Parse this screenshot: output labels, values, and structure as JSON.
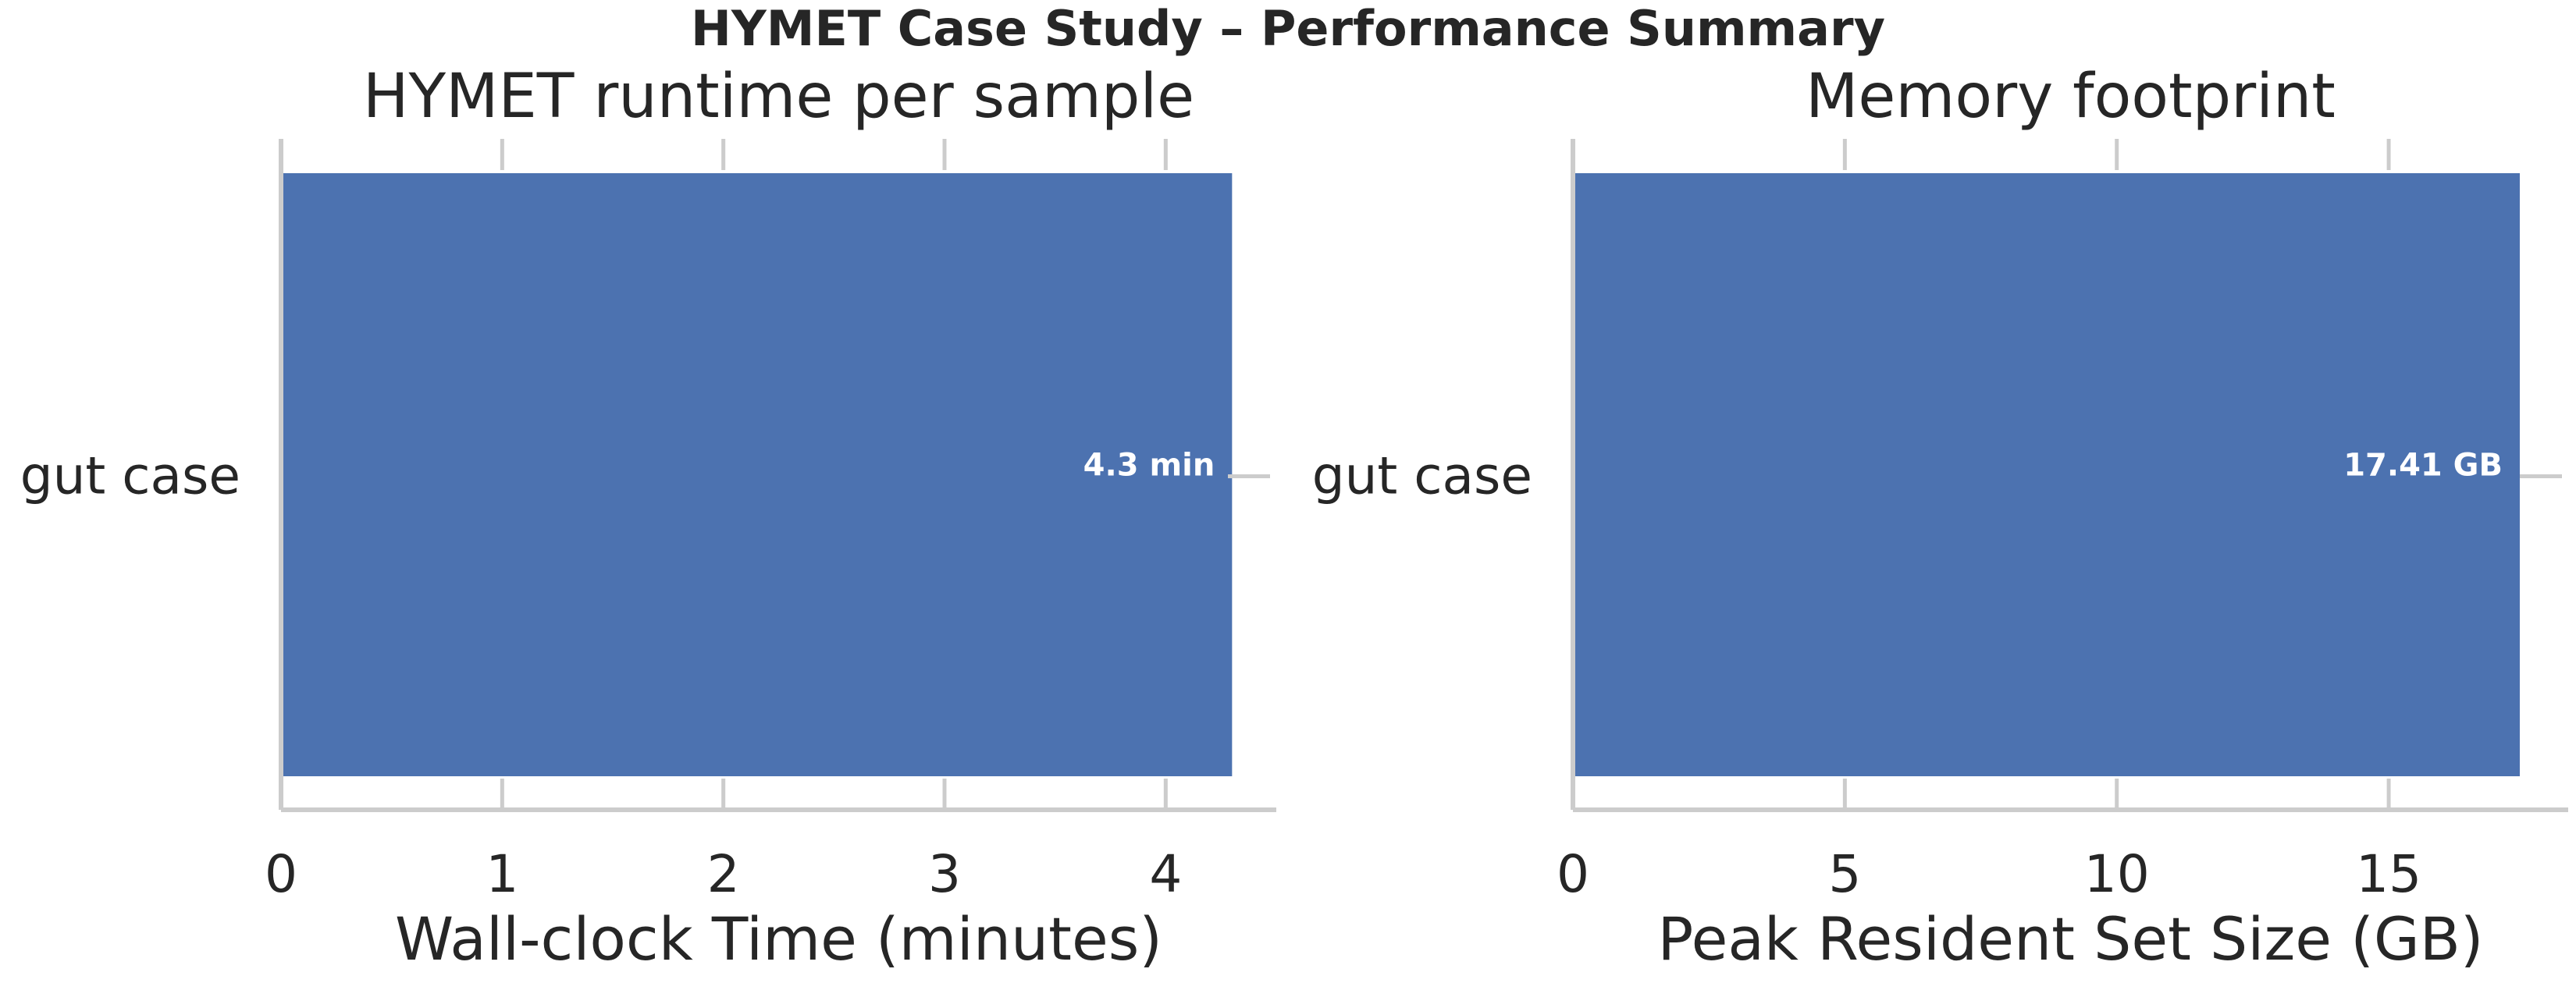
{
  "suptitle": "HYMET Case Study – Performance Summary",
  "colors": {
    "bar": "#4c72b0",
    "axis": "#cccccc",
    "text": "#262626",
    "bar_label": "#ffffff"
  },
  "chart_data": [
    {
      "type": "bar",
      "orientation": "horizontal",
      "title": "HYMET runtime per sample",
      "xlabel": "Wall-clock Time (minutes)",
      "ylabel": "",
      "categories": [
        "gut case"
      ],
      "values": [
        4.3
      ],
      "value_labels": [
        "4.3 min"
      ],
      "xlim": [
        0,
        4.5
      ],
      "xticks": [
        0,
        1,
        2,
        3,
        4
      ],
      "xtick_labels": [
        "0",
        "1",
        "2",
        "3",
        "4"
      ],
      "grid": false
    },
    {
      "type": "bar",
      "orientation": "horizontal",
      "title": "Memory footprint",
      "xlabel": "Peak Resident Set Size (GB)",
      "ylabel": "",
      "categories": [
        "gut case"
      ],
      "values": [
        17.41
      ],
      "value_labels": [
        "17.41 GB"
      ],
      "xlim": [
        0,
        18.3
      ],
      "xticks": [
        0,
        5,
        10,
        15
      ],
      "xtick_labels": [
        "0",
        "5",
        "10",
        "15"
      ],
      "grid": false
    }
  ]
}
